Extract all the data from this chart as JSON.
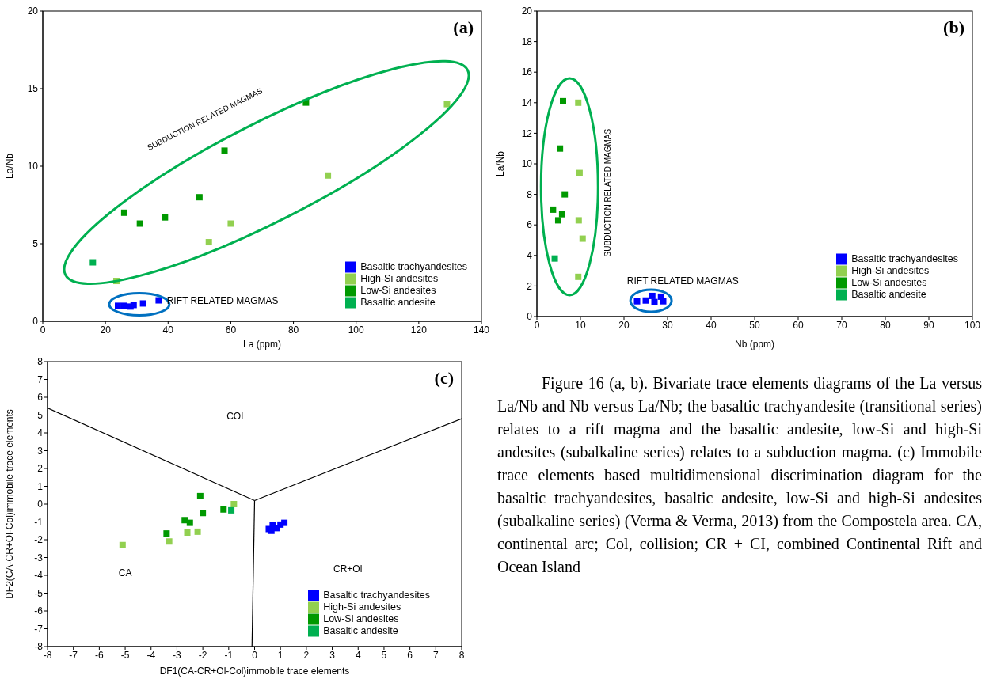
{
  "chart_data": [
    {
      "type": "scatter",
      "xlabel": "La (ppm)",
      "ylabel": "La/Nb",
      "xlim": [
        0,
        140
      ],
      "xticks": [
        0,
        20,
        40,
        60,
        80,
        100,
        120,
        140
      ],
      "ylim": [
        0,
        20
      ],
      "yticks": [
        0,
        5,
        10,
        15,
        20
      ],
      "grid": false,
      "legend": "bottom right",
      "marker": "square",
      "annotations": [
        "(a)",
        "SUBDUCTION RELATED MAGMAS",
        "RIFT RELATED MAGMAS"
      ],
      "series": [
        {
          "name": "Basaltic trachyandesites",
          "color": "#0000ff",
          "x": [
            24,
            26,
            28,
            29,
            32,
            37
          ],
          "values": [
            1.0,
            1.0,
            0.95,
            1.05,
            1.15,
            1.35
          ]
        },
        {
          "name": "High-Si andesites",
          "color": "#92d050",
          "x": [
            23.5,
            53,
            60,
            91,
            129
          ],
          "values": [
            2.6,
            5.1,
            6.3,
            9.4,
            14.0
          ]
        },
        {
          "name": "Low-Si andesites",
          "color": "#009900",
          "x": [
            26,
            31,
            39,
            50,
            58,
            84
          ],
          "values": [
            7.0,
            6.3,
            6.7,
            8.0,
            11.0,
            14.1
          ]
        },
        {
          "name": "Basaltic andesite",
          "color": "#00b050",
          "x": [
            16
          ],
          "values": [
            3.8
          ]
        }
      ]
    },
    {
      "type": "scatter",
      "xlabel": "Nb (ppm)",
      "ylabel": "La/Nb",
      "xlim": [
        0,
        100
      ],
      "xticks": [
        0,
        10,
        20,
        30,
        40,
        50,
        60,
        70,
        80,
        90,
        100
      ],
      "ylim": [
        0,
        20
      ],
      "yticks": [
        0,
        2,
        4,
        6,
        8,
        10,
        12,
        14,
        16,
        18,
        20
      ],
      "grid": false,
      "legend": "bottom right",
      "marker": "square",
      "annotations": [
        "(b)",
        "SUBDUCTION RELATED MAGMAS",
        "RIFT RELATED MAGMAS"
      ],
      "series": [
        {
          "name": "Basaltic trachyandesites",
          "color": "#0000ff",
          "x": [
            23,
            25,
            27,
            29,
            26.5,
            28.5
          ],
          "values": [
            1.0,
            1.05,
            0.95,
            1.0,
            1.35,
            1.3
          ]
        },
        {
          "name": "High-Si andesites",
          "color": "#92d050",
          "x": [
            9.5,
            10.5,
            9.6,
            9.8,
            9.5
          ],
          "values": [
            2.6,
            5.1,
            6.3,
            9.4,
            14.0
          ]
        },
        {
          "name": "Low-Si andesites",
          "color": "#009900",
          "x": [
            3.7,
            4.9,
            5.8,
            6.4,
            5.3,
            6
          ],
          "values": [
            7.0,
            6.3,
            6.7,
            8.0,
            11.0,
            14.1
          ]
        },
        {
          "name": "Basaltic andesite",
          "color": "#00b050",
          "x": [
            4.1
          ],
          "values": [
            3.8
          ]
        }
      ]
    },
    {
      "type": "scatter",
      "xlabel": "DF1(CA-CR+Ol-Col)immobile trace elements",
      "ylabel": "DF2(CA-CR+Ol-Col)immobile trace elements",
      "xlim": [
        -8,
        8
      ],
      "xticks": [
        -8,
        -7,
        -6,
        -5,
        -4,
        -3,
        -2,
        -1,
        0,
        1,
        2,
        3,
        4,
        5,
        6,
        7,
        8
      ],
      "ylim": [
        -8,
        8
      ],
      "yticks": [
        -8,
        -7,
        -6,
        -5,
        -4,
        -3,
        -2,
        -1,
        0,
        1,
        2,
        3,
        4,
        5,
        6,
        7,
        8
      ],
      "grid": false,
      "legend": "bottom right",
      "marker": "square",
      "annotations": [
        "(c)",
        "COL",
        "CA",
        "CR+Ol"
      ],
      "series": [
        {
          "type": "line",
          "marker": "none",
          "color": "#000000",
          "x": [
            -8,
            0
          ],
          "values": [
            5.4,
            0.2
          ]
        },
        {
          "type": "line",
          "marker": "none",
          "color": "#000000",
          "x": [
            0,
            8
          ],
          "values": [
            0.2,
            4.8
          ]
        },
        {
          "type": "line",
          "marker": "none",
          "color": "#000000",
          "x": [
            -0.1,
            0
          ],
          "values": [
            -8,
            0.2
          ]
        },
        {
          "name": "Basaltic trachyandesites",
          "color": "#0000ff",
          "x": [
            0.55,
            0.7,
            0.85,
            1.0,
            1.15,
            0.65
          ],
          "values": [
            -1.4,
            -1.2,
            -1.35,
            -1.15,
            -1.05,
            -1.5
          ]
        },
        {
          "name": "High-Si andesites",
          "color": "#92d050",
          "x": [
            -5.1,
            -3.3,
            -2.6,
            -2.2,
            -0.8
          ],
          "values": [
            -2.3,
            -2.1,
            -1.6,
            -1.55,
            0.0
          ]
        },
        {
          "name": "Low-Si andesites",
          "color": "#009900",
          "x": [
            -3.4,
            -2.7,
            -2.5,
            -2.1,
            -2.0,
            -1.2
          ],
          "values": [
            -1.65,
            -0.9,
            -1.05,
            0.45,
            -0.5,
            -0.3
          ]
        },
        {
          "name": "Basaltic andesite",
          "color": "#00b050",
          "x": [
            -0.9
          ],
          "values": [
            -0.35
          ]
        }
      ]
    },
    {
      "type": "other",
      "annotations": [
        "Figure 16 (a, b). Bivariate trace elements diagrams of the La versus La/Nb and Nb versus La/Nb; the basaltic trachyandesite (transitional series) relates to a rift magma and the basaltic andesite, low-Si and high-Si andesites (subalkaline series) relates to a subduction magma. (c) Immobile trace elements based multidimensional discrimination diagram for the basaltic trachyandesites, basaltic andesite, low-Si and high-Si andesites (subalkaline series) (Verma & Verma, 2013) from the Compostela area. CA, continental arc; Col, collision; CR + CI, combined Continental Rift and Ocean Island"
      ]
    }
  ]
}
